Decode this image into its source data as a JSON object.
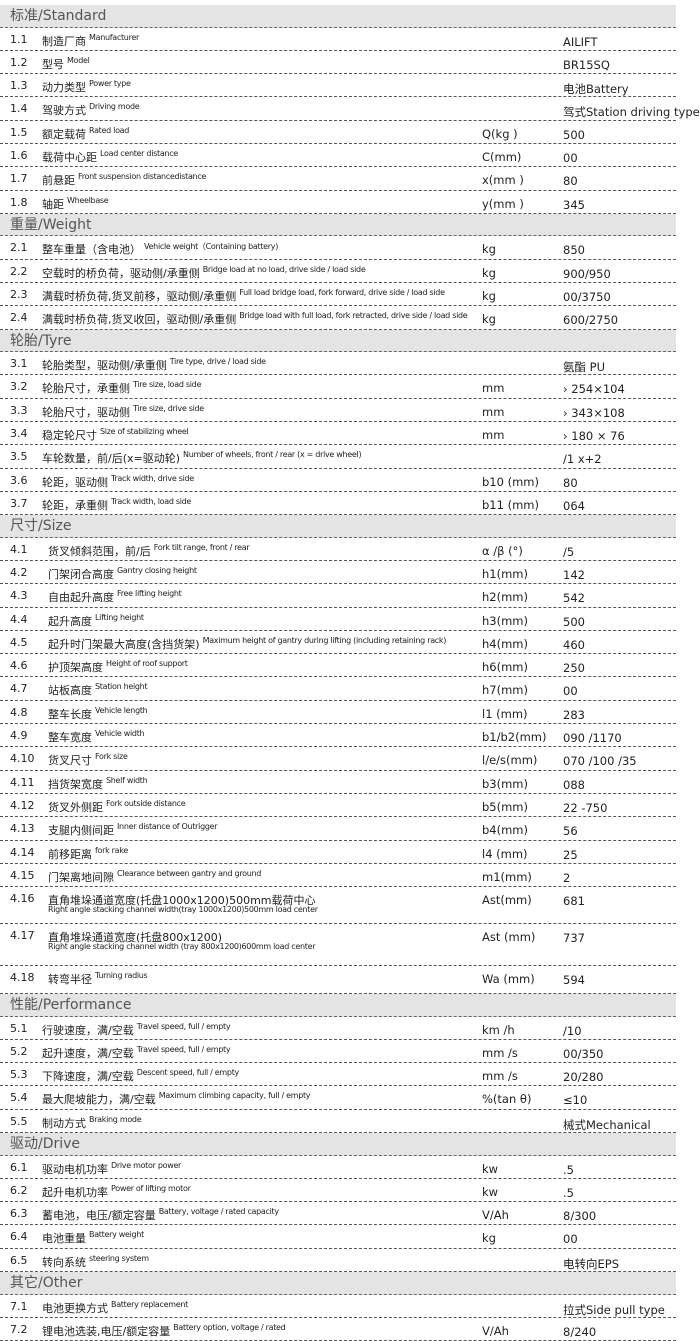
{
  "sections": [
    {
      "title": "标准/Standard",
      "rows": [
        {
          "no": "1.1",
          "cn": "制造厂商",
          "en": "Manufacturer",
          "value": "AILIFT"
        },
        {
          "no": "1.2",
          "cn": "型号",
          "en": "Model",
          "value": "BR15SQ"
        },
        {
          "no": "1.3",
          "cn": "动力类型",
          "en": "Power type",
          "value": "电池Battery"
        },
        {
          "no": "1.4",
          "cn": "驾驶方式",
          "en": "Driving mode",
          "value": "驾式Station driving type"
        },
        {
          "no": "1.5",
          "cn": "额定载荷",
          "en": "Rated load",
          "unit": "Q(kg )",
          "value": "500"
        },
        {
          "no": "1.6",
          "cn": "载荷中心距",
          "en": "Load center distance",
          "unit": "C(mm)",
          "value": "00"
        },
        {
          "no": "1.7",
          "cn": "前悬距",
          "en": "Front suspension distancedistance",
          "unit": "x(mm )",
          "value": "80"
        },
        {
          "no": "1.8",
          "cn": "轴距",
          "en": "Wheelbase",
          "unit": "y(mm )",
          "value": "345"
        }
      ]
    },
    {
      "title": "重量/Weight",
      "rows": [
        {
          "no": "2.1",
          "cn": "整车重量（含电池）",
          "en": "Vehicle weight（Containing battery)",
          "unit": "kg",
          "value": "850"
        },
        {
          "no": "2.2",
          "cn": "空载时的桥负荷，驱动侧/承重侧",
          "en": "Bridge load at no load, drive side / load side",
          "unit": "kg",
          "value": "900/950"
        },
        {
          "no": "2.3",
          "cn": "满载时桥负荷,货叉前移，驱动侧/承重侧",
          "en": "Full load bridge load, fork forward, drive side / load side",
          "unit": "kg",
          "value": "00/3750"
        },
        {
          "no": "2.4",
          "cn": "满载时桥负荷,货叉收回，驱动侧/承重侧",
          "en": "Bridge load with full load, fork retracted, drive side / load side",
          "unit": "kg",
          "value": "600/2750"
        }
      ]
    },
    {
      "title": "轮胎/Tyre",
      "rows": [
        {
          "no": "3.1",
          "cn": "轮胎类型，驱动侧/承重侧",
          "en": "Tire type, drive / load side",
          "value": "氨酯  PU"
        },
        {
          "no": "3.2",
          "cn": "轮胎尺寸，承重侧",
          "en": "Tire size, load side",
          "unit": "mm",
          "value": "› 254×104"
        },
        {
          "no": "3.3",
          "cn": "轮胎尺寸，驱动侧",
          "en": "Tire size, drive side",
          "unit": "mm",
          "value": "› 343×108"
        },
        {
          "no": "3.4",
          "cn": "稳定轮尺寸",
          "en": "Size of stabilizing wheel",
          "unit": "mm",
          "value": "› 180 × 76"
        },
        {
          "no": "3.5",
          "cn": "车轮数量，前/后(x=驱动轮)",
          "en": "Number of wheels, front / rear (x = drive wheel)",
          "value": "/1 x+2"
        },
        {
          "no": "3.6",
          "cn": "轮距，驱动侧",
          "en": "Track width, drive side",
          "unit": "b10 (mm)",
          "value": "80"
        },
        {
          "no": "3.7",
          "cn": "轮距，承重侧",
          "en": "Track width, load side",
          "unit": "b11 (mm)",
          "value": "064"
        }
      ]
    },
    {
      "title": "尺寸/Size",
      "rows": [
        {
          "no": "4.1",
          "cn": "货叉倾斜范围，前/后",
          "en": "Fork tilt range, front / rear",
          "unit": "α /β (°)",
          "value": "/5"
        },
        {
          "no": "4.2",
          "cn": "门架闭合高度",
          "en": "Gantry closing height",
          "unit": "h1(mm)",
          "value": "142"
        },
        {
          "no": "4.3",
          "cn": "自由起升高度",
          "en": "Free lifting height",
          "unit": "h2(mm)",
          "value": "542"
        },
        {
          "no": "4.4",
          "cn": "起升高度",
          "en": "Lifting height",
          "unit": "h3(mm)",
          "value": "500"
        },
        {
          "no": "4.5",
          "cn": "起升时门架最大高度(含挡货架)",
          "en": "Maximum height of gantry during lifting (including retaining rack)",
          "unit": "h4(mm)",
          "value": "460"
        },
        {
          "no": "4.6",
          "cn": "护顶架高度",
          "en": "Height of roof support",
          "unit": "h6(mm)",
          "value": "250"
        },
        {
          "no": "4.7",
          "cn": "站板高度",
          "en": "Station height",
          "unit": "h7(mm)",
          "value": "00"
        },
        {
          "no": "4.8",
          "cn": "整车长度",
          "en": "Vehicle length",
          "unit": "l1 (mm)",
          "value": "283"
        },
        {
          "no": "4.9",
          "cn": "整车宽度",
          "en": "Vehicle width",
          "unit": "b1/b2(mm)",
          "value": "090 /1170"
        },
        {
          "no": "4.10",
          "cn": "货叉尺寸",
          "en": "Fork size",
          "unit": "l/e/s(mm)",
          "value": "070 /100 /35"
        },
        {
          "no": "4.11",
          "cn": "挡货架宽度",
          "en": "Shelf width",
          "unit": "b3(mm)",
          "value": "088"
        },
        {
          "no": "4.12",
          "cn": "货叉外侧距",
          "en": "Fork outside distance",
          "unit": "b5(mm)",
          "value": "22 -750"
        },
        {
          "no": "4.13",
          "cn": "支腿内侧间距",
          "en": "Inner distance of Outrigger",
          "unit": "b4(mm)",
          "value": "56"
        },
        {
          "no": "4.14",
          "cn": "前移距离",
          "en": "fork rake",
          "unit": "l4 (mm)",
          "value": "25"
        },
        {
          "no": "4.15",
          "cn": "门架离地间隙",
          "en": "Clearance between gantry and ground",
          "unit": "m1(mm)",
          "value": "2"
        },
        {
          "no": "4.16",
          "cn": "直角堆垛通道宽度(托盘1000x1200)500mm载荷中心",
          "en": "Right angle stacking channel width(tray 1000x1200)500mm load center",
          "unit": "Ast(mm)",
          "value": "681"
        },
        {
          "no": "4.17",
          "cn": "直角堆垛通道宽度(托盘800x1200)",
          "en": "Right angle stacking channel width (tray 800x1200)600mm load center",
          "unit": "Ast (mm)",
          "value": "737"
        },
        {
          "no": "4.18",
          "cn": "转弯半径",
          "en": "Turning radius",
          "unit": "Wa (mm)",
          "value": "594"
        }
      ]
    },
    {
      "title": "性能/Performance",
      "rows": [
        {
          "no": "5.1",
          "cn": "行驶速度，满/空载",
          "en": "Travel speed, full / empty",
          "unit": "km /h",
          "value": "/10"
        },
        {
          "no": "5.2",
          "cn": "起升速度，满/空载",
          "en": "Travel speed, full / empty",
          "unit": "mm /s",
          "value": "00/350"
        },
        {
          "no": "5.3",
          "cn": "下降速度，满/空载",
          "en": "Descent speed, full / empty",
          "unit": "mm /s",
          "value": "20/280"
        },
        {
          "no": "5.4",
          "cn": "最大爬坡能力，满/空载",
          "en": "Maximum climbing capacity, full / empty",
          "unit": "%(tan θ)",
          "value": "≤10"
        },
        {
          "no": "5.5",
          "cn": "制动方式",
          "en": "Braking mode",
          "value": "械式Mechanical"
        }
      ]
    },
    {
      "title": "驱动/Drive",
      "rows": [
        {
          "no": "6.1",
          "cn": "驱动电机功率",
          "en": "Drive motor power",
          "unit": "kw",
          "value": ".5"
        },
        {
          "no": "6.2",
          "cn": "起升电机功率",
          "en": "Power of lifting motor",
          "unit": "kw",
          "value": ".5"
        },
        {
          "no": "6.3",
          "cn": "蓄电池，电压/额定容量",
          "en": "Battery, voltage / rated capacity",
          "unit": "V/Ah",
          "value": "8/300"
        },
        {
          "no": "6.4",
          "cn": "电池重量",
          "en": "Battery weight",
          "unit": "kg",
          "value": "00"
        },
        {
          "no": "6.5",
          "cn": "转向系统",
          "en": "steering system",
          "value": "电转向EPS"
        }
      ]
    },
    {
      "title": "其它/Other",
      "rows": [
        {
          "no": "7.1",
          "cn": "电池更换方式",
          "en": "Battery replacement",
          "value": "拉式Side pull type"
        },
        {
          "no": "7.2",
          "cn": "锂电池选装,电压/额定容量",
          "en": "Battery option, voltage / rated",
          "unit": "V/Ah",
          "value": "8/240"
        }
      ]
    }
  ]
}
